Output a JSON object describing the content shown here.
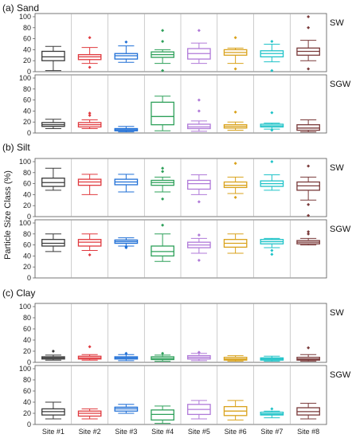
{
  "figure": {
    "ylabel": "Particle Size Class (%)",
    "sites": [
      "Site #1",
      "Site #2",
      "Site #3",
      "Site #4",
      "Site #5",
      "Site #6",
      "Site #7",
      "Site #8"
    ],
    "colors": [
      "#3a3a3a",
      "#e0393e",
      "#1f6fd6",
      "#2ea05a",
      "#b07ad8",
      "#d9a21b",
      "#1fc3c8",
      "#7a3a3a"
    ],
    "yticks": [
      0,
      20,
      40,
      60,
      80,
      100
    ]
  },
  "chart_data": [
    {
      "type": "boxplot",
      "panel_title": "(a) Sand",
      "ylim": [
        0,
        100
      ],
      "series": [
        {
          "name": "SW",
          "boxes": [
            {
              "min": 2,
              "q1": 20,
              "median": 27,
              "q3": 37,
              "max": 46,
              "outliers": []
            },
            {
              "min": 15,
              "q1": 22,
              "median": 27,
              "q3": 31,
              "max": 44,
              "outliers": [
                8,
                62
              ]
            },
            {
              "min": 17,
              "q1": 23,
              "median": 29,
              "q3": 33,
              "max": 47,
              "outliers": [
                54
              ]
            },
            {
              "min": 15,
              "q1": 26,
              "median": 31,
              "q3": 36,
              "max": 40,
              "outliers": [
                2,
                55,
                75
              ]
            },
            {
              "min": 15,
              "q1": 23,
              "median": 33,
              "q3": 42,
              "max": 52,
              "outliers": [
                75
              ]
            },
            {
              "min": 15,
              "q1": 30,
              "median": 35,
              "q3": 40,
              "max": 43,
              "outliers": [
                5,
                62
              ]
            },
            {
              "min": 18,
              "q1": 27,
              "median": 33,
              "q3": 38,
              "max": 50,
              "outliers": [
                2,
                55
              ]
            },
            {
              "min": 20,
              "q1": 30,
              "median": 37,
              "q3": 43,
              "max": 57,
              "outliers": [
                5,
                80,
                100
              ]
            }
          ]
        },
        {
          "name": "SGW",
          "boxes": [
            {
              "min": 8,
              "q1": 12,
              "median": 15,
              "q3": 19,
              "max": 25,
              "outliers": []
            },
            {
              "min": 8,
              "q1": 11,
              "median": 15,
              "q3": 19,
              "max": 24,
              "outliers": [
                32,
                36
              ]
            },
            {
              "min": 2,
              "q1": 4,
              "median": 6,
              "q3": 8,
              "max": 12,
              "outliers": []
            },
            {
              "min": 4,
              "q1": 15,
              "median": 30,
              "q3": 56,
              "max": 67,
              "outliers": []
            },
            {
              "min": 3,
              "q1": 8,
              "median": 11,
              "q3": 16,
              "max": 22,
              "outliers": [
                40,
                60
              ]
            },
            {
              "min": 5,
              "q1": 9,
              "median": 12,
              "q3": 15,
              "max": 20,
              "outliers": [
                38
              ]
            },
            {
              "min": 7,
              "q1": 11,
              "median": 13,
              "q3": 16,
              "max": 18,
              "outliers": [
                5,
                37
              ]
            },
            {
              "min": 2,
              "q1": 5,
              "median": 9,
              "q3": 15,
              "max": 24,
              "outliers": []
            }
          ]
        }
      ]
    },
    {
      "type": "boxplot",
      "panel_title": "(b) Silt",
      "ylim": [
        0,
        100
      ],
      "series": [
        {
          "name": "SW",
          "boxes": [
            {
              "min": 48,
              "q1": 55,
              "median": 62,
              "q3": 70,
              "max": 88,
              "outliers": []
            },
            {
              "min": 40,
              "q1": 57,
              "median": 63,
              "q3": 68,
              "max": 77,
              "outliers": []
            },
            {
              "min": 45,
              "q1": 58,
              "median": 63,
              "q3": 68,
              "max": 77,
              "outliers": []
            },
            {
              "min": 45,
              "q1": 57,
              "median": 62,
              "q3": 66,
              "max": 72,
              "outliers": [
                32,
                82,
                88
              ]
            },
            {
              "min": 40,
              "q1": 50,
              "median": 60,
              "q3": 66,
              "max": 76,
              "outliers": [
                27
              ]
            },
            {
              "min": 42,
              "q1": 53,
              "median": 57,
              "q3": 63,
              "max": 72,
              "outliers": [
                35,
                97
              ]
            },
            {
              "min": 48,
              "q1": 55,
              "median": 60,
              "q3": 65,
              "max": 76,
              "outliers": [
                100
              ]
            },
            {
              "min": 30,
              "q1": 48,
              "median": 56,
              "q3": 63,
              "max": 72,
              "outliers": [
                2,
                22,
                92
              ]
            }
          ]
        },
        {
          "name": "SGW",
          "boxes": [
            {
              "min": 48,
              "q1": 58,
              "median": 63,
              "q3": 70,
              "max": 80,
              "outliers": []
            },
            {
              "min": 50,
              "q1": 58,
              "median": 65,
              "q3": 70,
              "max": 80,
              "outliers": [
                42
              ]
            },
            {
              "min": 58,
              "q1": 63,
              "median": 66,
              "q3": 69,
              "max": 73,
              "outliers": [
                55,
                57
              ]
            },
            {
              "min": 30,
              "q1": 40,
              "median": 48,
              "q3": 58,
              "max": 80,
              "outliers": [
                96
              ]
            },
            {
              "min": 45,
              "q1": 55,
              "median": 60,
              "q3": 65,
              "max": 72,
              "outliers": [
                32,
                78
              ]
            },
            {
              "min": 45,
              "q1": 56,
              "median": 63,
              "q3": 70,
              "max": 80,
              "outliers": []
            },
            {
              "min": 55,
              "q1": 62,
              "median": 66,
              "q3": 70,
              "max": 72,
              "outliers": [
                43,
                50
              ]
            },
            {
              "min": 60,
              "q1": 62,
              "median": 65,
              "q3": 68,
              "max": 72,
              "outliers": [
                80,
                84
              ]
            }
          ]
        }
      ]
    },
    {
      "type": "boxplot",
      "panel_title": "(c) Clay",
      "ylim": [
        0,
        100
      ],
      "series": [
        {
          "name": "SW",
          "boxes": [
            {
              "min": 4,
              "q1": 6,
              "median": 8,
              "q3": 10,
              "max": 13,
              "outliers": [
                20
              ]
            },
            {
              "min": 4,
              "q1": 6,
              "median": 8,
              "q3": 11,
              "max": 14,
              "outliers": [
                28
              ]
            },
            {
              "min": 3,
              "q1": 6,
              "median": 8,
              "q3": 10,
              "max": 14,
              "outliers": [
                16
              ]
            },
            {
              "min": 2,
              "q1": 5,
              "median": 7,
              "q3": 10,
              "max": 13,
              "outliers": [
                16
              ]
            },
            {
              "min": 3,
              "q1": 6,
              "median": 9,
              "q3": 12,
              "max": 16,
              "outliers": [
                18
              ]
            },
            {
              "min": 2,
              "q1": 4,
              "median": 6,
              "q3": 9,
              "max": 12,
              "outliers": []
            },
            {
              "min": 2,
              "q1": 4,
              "median": 6,
              "q3": 8,
              "max": 11,
              "outliers": []
            },
            {
              "min": 2,
              "q1": 4,
              "median": 6,
              "q3": 9,
              "max": 14,
              "outliers": [
                26
              ]
            }
          ]
        },
        {
          "name": "SGW",
          "boxes": [
            {
              "min": 10,
              "q1": 17,
              "median": 23,
              "q3": 28,
              "max": 40,
              "outliers": []
            },
            {
              "min": 10,
              "q1": 15,
              "median": 20,
              "q3": 24,
              "max": 28,
              "outliers": []
            },
            {
              "min": 20,
              "q1": 24,
              "median": 28,
              "q3": 31,
              "max": 36,
              "outliers": []
            },
            {
              "min": 2,
              "q1": 8,
              "median": 18,
              "q3": 26,
              "max": 33,
              "outliers": []
            },
            {
              "min": 10,
              "q1": 18,
              "median": 27,
              "q3": 36,
              "max": 43,
              "outliers": []
            },
            {
              "min": 8,
              "q1": 16,
              "median": 24,
              "q3": 32,
              "max": 43,
              "outliers": []
            },
            {
              "min": 12,
              "q1": 17,
              "median": 19,
              "q3": 22,
              "max": 24,
              "outliers": [
                28
              ]
            },
            {
              "min": 10,
              "q1": 17,
              "median": 23,
              "q3": 30,
              "max": 38,
              "outliers": []
            }
          ]
        }
      ]
    }
  ]
}
